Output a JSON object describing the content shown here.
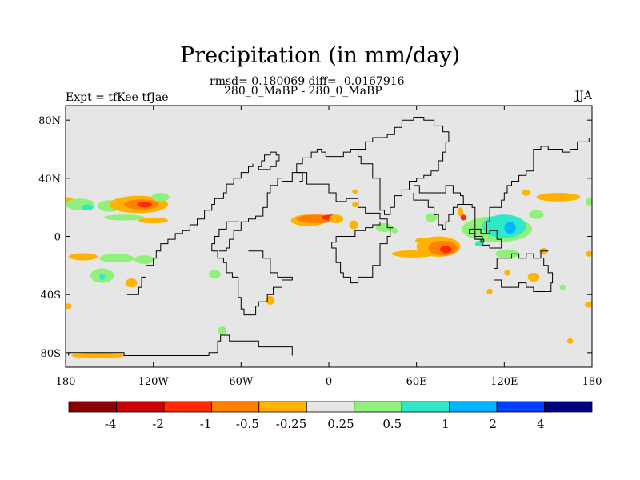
{
  "title": "Precipitation (in mm/day)",
  "stats": "rmsd= 0.180069 diff= -0.0167916",
  "subtitle": "280_0_MaBP - 280_0_MaBP",
  "left_label": "Expt = tfKee-tfJae",
  "right_label": "JJA",
  "map": {
    "background_color": "#e6e6e6",
    "lon_range": [
      -180,
      180
    ],
    "lat_range": [
      -90,
      90
    ],
    "lat_ticks": [
      {
        "value": 80,
        "label": "80N"
      },
      {
        "value": 40,
        "label": "40N"
      },
      {
        "value": 0,
        "label": "0"
      },
      {
        "value": -40,
        "label": "40S"
      },
      {
        "value": -80,
        "label": "80S"
      }
    ],
    "lon_ticks": [
      {
        "value": -180,
        "label": "180"
      },
      {
        "value": -120,
        "label": "120W"
      },
      {
        "value": -60,
        "label": "60W"
      },
      {
        "value": 0,
        "label": "0"
      },
      {
        "value": 60,
        "label": "60E"
      },
      {
        "value": 120,
        "label": "120E"
      },
      {
        "value": 180,
        "label": "180"
      }
    ]
  },
  "colorbar": {
    "colors": [
      "#8b0000",
      "#cc0000",
      "#ff2a00",
      "#ff7f00",
      "#ffb300",
      "#e6e6e6",
      "#8ff07a",
      "#2ee8c8",
      "#00b4ff",
      "#0040ff",
      "#000080"
    ],
    "labels": [
      "-4",
      "-2",
      "-1",
      "-0.5",
      "-0.25",
      "0.25",
      "0.5",
      "1",
      "2",
      "4"
    ]
  },
  "anomalies": [
    {
      "lon": -178,
      "lat": 24,
      "rx": 4,
      "ry": 3,
      "color": "#ffb300"
    },
    {
      "lon": -170,
      "lat": 22,
      "rx": 10,
      "ry": 4,
      "color": "#8ff07a"
    },
    {
      "lon": -165,
      "lat": 20,
      "rx": 4,
      "ry": 2,
      "color": "#2ee8c8"
    },
    {
      "lon": -150,
      "lat": 21,
      "rx": 8,
      "ry": 4,
      "color": "#8ff07a"
    },
    {
      "lon": -130,
      "lat": 22,
      "rx": 20,
      "ry": 6,
      "color": "#ffb300"
    },
    {
      "lon": -128,
      "lat": 22,
      "rx": 12,
      "ry": 3.5,
      "color": "#ff7f00"
    },
    {
      "lon": -126,
      "lat": 22,
      "rx": 5,
      "ry": 2,
      "color": "#ff2a00"
    },
    {
      "lon": -115,
      "lat": 27,
      "rx": 6,
      "ry": 3,
      "color": "#8ff07a"
    },
    {
      "lon": -140,
      "lat": 13,
      "rx": 14,
      "ry": 2,
      "color": "#8ff07a"
    },
    {
      "lon": -120,
      "lat": 11,
      "rx": 10,
      "ry": 2,
      "color": "#ffb300"
    },
    {
      "lon": -168,
      "lat": -14,
      "rx": 10,
      "ry": 2.5,
      "color": "#ffb300"
    },
    {
      "lon": -145,
      "lat": -15,
      "rx": 12,
      "ry": 3,
      "color": "#8ff07a"
    },
    {
      "lon": -126,
      "lat": -16,
      "rx": 7,
      "ry": 3,
      "color": "#8ff07a"
    },
    {
      "lon": -155,
      "lat": -27,
      "rx": 8,
      "ry": 5,
      "color": "#8ff07a"
    },
    {
      "lon": -155,
      "lat": -28,
      "rx": 2,
      "ry": 2,
      "color": "#2ee8c8"
    },
    {
      "lon": -135,
      "lat": -32,
      "rx": 4,
      "ry": 3,
      "color": "#ffb300"
    },
    {
      "lon": -78,
      "lat": -26,
      "rx": 4,
      "ry": 3,
      "color": "#8ff07a"
    },
    {
      "lon": -73,
      "lat": -65,
      "rx": 3,
      "ry": 3,
      "color": "#8ff07a"
    },
    {
      "lon": -178,
      "lat": -48,
      "rx": 2,
      "ry": 2,
      "color": "#ffb300"
    },
    {
      "lon": -40,
      "lat": -44,
      "rx": 3,
      "ry": 3,
      "color": "#ffb300"
    },
    {
      "lon": -14,
      "lat": 11,
      "rx": 12,
      "ry": 4,
      "color": "#ffb300"
    },
    {
      "lon": -8,
      "lat": 12,
      "rx": 14,
      "ry": 3,
      "color": "#ff7f00"
    },
    {
      "lon": 2,
      "lat": 13,
      "rx": 7,
      "ry": 2,
      "color": "#ff2a00"
    },
    {
      "lon": 5,
      "lat": 12,
      "rx": 5,
      "ry": 3,
      "color": "#ffb300"
    },
    {
      "lon": 17,
      "lat": 8,
      "rx": 3,
      "ry": 3,
      "color": "#ffb300"
    },
    {
      "lon": 18,
      "lat": 22,
      "rx": 2,
      "ry": 2,
      "color": "#ffb300"
    },
    {
      "lon": 38,
      "lat": 6,
      "rx": 6,
      "ry": 3,
      "color": "#8ff07a"
    },
    {
      "lon": 45,
      "lat": 4,
      "rx": 2,
      "ry": 2,
      "color": "#8ff07a"
    },
    {
      "lon": 18,
      "lat": 31,
      "rx": 2,
      "ry": 1.5,
      "color": "#ffb300"
    },
    {
      "lon": 58,
      "lat": -12,
      "rx": 15,
      "ry": 2.5,
      "color": "#ffb300"
    },
    {
      "lon": 75,
      "lat": -7,
      "rx": 15,
      "ry": 7,
      "color": "#ffb300"
    },
    {
      "lon": 78,
      "lat": -8,
      "rx": 10,
      "ry": 5,
      "color": "#ff7f00"
    },
    {
      "lon": 80,
      "lat": -9,
      "rx": 4,
      "ry": 2.5,
      "color": "#ff2a00"
    },
    {
      "lon": 64,
      "lat": -3,
      "rx": 5,
      "ry": 2,
      "color": "#ffb300"
    },
    {
      "lon": 70,
      "lat": 13,
      "rx": 4,
      "ry": 3,
      "color": "#8ff07a"
    },
    {
      "lon": 90,
      "lat": 17,
      "rx": 2,
      "ry": 3,
      "color": "#ffb300"
    },
    {
      "lon": 92,
      "lat": 13,
      "rx": 2,
      "ry": 2,
      "color": "#ff2a00"
    },
    {
      "lon": 115,
      "lat": 5,
      "rx": 24,
      "ry": 9,
      "color": "#8ff07a"
    },
    {
      "lon": 120,
      "lat": 7,
      "rx": 15,
      "ry": 8,
      "color": "#2ee8c8"
    },
    {
      "lon": 124,
      "lat": 6,
      "rx": 4,
      "ry": 4,
      "color": "#00b4ff"
    },
    {
      "lon": 103,
      "lat": -5,
      "rx": 3,
      "ry": 2,
      "color": "#2ee8c8"
    },
    {
      "lon": 122,
      "lat": -12,
      "rx": 8,
      "ry": 3,
      "color": "#8ff07a"
    },
    {
      "lon": 142,
      "lat": 15,
      "rx": 5,
      "ry": 3,
      "color": "#8ff07a"
    },
    {
      "lon": 157,
      "lat": 27,
      "rx": 15,
      "ry": 3,
      "color": "#ffb300"
    },
    {
      "lon": 135,
      "lat": 30,
      "rx": 3,
      "ry": 2,
      "color": "#ffb300"
    },
    {
      "lon": 140,
      "lat": -28,
      "rx": 4,
      "ry": 3,
      "color": "#ffb300"
    },
    {
      "lon": 147,
      "lat": -10,
      "rx": 3,
      "ry": 2,
      "color": "#ffb300"
    },
    {
      "lon": 122,
      "lat": -25,
      "rx": 2,
      "ry": 2,
      "color": "#ffb300"
    },
    {
      "lon": 110,
      "lat": -38,
      "rx": 2,
      "ry": 2,
      "color": "#ffb300"
    },
    {
      "lon": 160,
      "lat": -35,
      "rx": 2,
      "ry": 2,
      "color": "#8ff07a"
    },
    {
      "lon": 178,
      "lat": 24,
      "rx": 2,
      "ry": 3,
      "color": "#8ff07a"
    },
    {
      "lon": 178,
      "lat": -47,
      "rx": 3,
      "ry": 2,
      "color": "#ffb300"
    },
    {
      "lon": 178,
      "lat": -12,
      "rx": 2,
      "ry": 2,
      "color": "#ffb300"
    },
    {
      "lon": 165,
      "lat": -72,
      "rx": 2,
      "ry": 2,
      "color": "#ffb300"
    },
    {
      "lon": -158,
      "lat": -82,
      "rx": 18,
      "ry": 2,
      "color": "#ffb300"
    }
  ],
  "land_outlines": [
    [
      [
        -25,
        -82
      ],
      [
        -25,
        -76
      ],
      [
        -40,
        -76
      ],
      [
        -48,
        -72
      ],
      [
        -62,
        -72
      ],
      [
        -68,
        -68
      ],
      [
        -74,
        -72
      ],
      [
        -76,
        -80
      ],
      [
        -82,
        -82
      ],
      [
        -100,
        -82
      ],
      [
        -110,
        -82
      ],
      [
        -140,
        -82
      ],
      [
        -140,
        -80
      ],
      [
        -178,
        -80
      ],
      [
        -178,
        -82
      ]
    ],
    [
      [
        -75,
        -10
      ],
      [
        -70,
        -8
      ],
      [
        -68,
        -2
      ],
      [
        -65,
        4
      ],
      [
        -60,
        10
      ],
      [
        -55,
        12
      ],
      [
        -50,
        14
      ],
      [
        -45,
        20
      ],
      [
        -42,
        30
      ],
      [
        -40,
        35
      ],
      [
        -35,
        40
      ],
      [
        -32,
        38
      ],
      [
        -25,
        44
      ],
      [
        -15,
        44
      ],
      [
        -15,
        36
      ],
      [
        -5,
        36
      ],
      [
        0,
        30
      ],
      [
        5,
        24
      ],
      [
        12,
        26
      ],
      [
        20,
        20
      ],
      [
        25,
        20
      ],
      [
        25,
        16
      ],
      [
        35,
        12
      ],
      [
        40,
        6
      ],
      [
        44,
        6
      ],
      [
        42,
        0
      ],
      [
        40,
        -5
      ],
      [
        35,
        -20
      ],
      [
        30,
        -28
      ],
      [
        20,
        -32
      ],
      [
        15,
        -32
      ],
      [
        15,
        -28
      ],
      [
        10,
        -25
      ],
      [
        8,
        -18
      ],
      [
        5,
        -8
      ],
      [
        2,
        -4
      ],
      [
        5,
        0
      ],
      [
        10,
        0
      ],
      [
        18,
        4
      ],
      [
        25,
        6
      ],
      [
        30,
        8
      ],
      [
        35,
        10
      ]
    ],
    [
      [
        -55,
        -10
      ],
      [
        -45,
        -15
      ],
      [
        -40,
        -25
      ],
      [
        -35,
        -28
      ],
      [
        -30,
        -28
      ],
      [
        -25,
        -30
      ],
      [
        -32,
        -35
      ],
      [
        -38,
        -40
      ],
      [
        -42,
        -45
      ],
      [
        -48,
        -48
      ],
      [
        -50,
        -54
      ],
      [
        -55,
        -54
      ],
      [
        -58,
        -50
      ],
      [
        -60,
        -42
      ],
      [
        -62,
        -38
      ],
      [
        -62,
        -28
      ],
      [
        -66,
        -25
      ],
      [
        -70,
        -18
      ],
      [
        -72,
        -15
      ],
      [
        -76,
        -10
      ],
      [
        -80,
        -5
      ],
      [
        -78,
        0
      ],
      [
        -75,
        5
      ],
      [
        -70,
        10
      ],
      [
        -62,
        11
      ]
    ],
    [
      [
        35,
        30
      ],
      [
        35,
        40
      ],
      [
        30,
        42
      ],
      [
        30,
        50
      ],
      [
        22,
        55
      ],
      [
        20,
        60
      ],
      [
        25,
        65
      ],
      [
        30,
        68
      ],
      [
        40,
        70
      ],
      [
        45,
        75
      ],
      [
        50,
        80
      ],
      [
        58,
        82
      ],
      [
        65,
        80
      ],
      [
        72,
        76
      ],
      [
        78,
        72
      ],
      [
        82,
        65
      ],
      [
        80,
        58
      ],
      [
        78,
        52
      ],
      [
        75,
        45
      ],
      [
        70,
        42
      ],
      [
        65,
        40
      ],
      [
        60,
        38
      ],
      [
        55,
        32
      ],
      [
        50,
        28
      ],
      [
        45,
        20
      ],
      [
        42,
        15
      ],
      [
        38,
        18
      ],
      [
        35,
        24
      ],
      [
        35,
        30
      ]
    ],
    [
      [
        58,
        35
      ],
      [
        62,
        30
      ],
      [
        70,
        30
      ],
      [
        75,
        30
      ],
      [
        80,
        35
      ],
      [
        85,
        30
      ],
      [
        90,
        28
      ],
      [
        92,
        22
      ],
      [
        88,
        20
      ],
      [
        85,
        15
      ],
      [
        82,
        10
      ],
      [
        80,
        5
      ],
      [
        78,
        8
      ],
      [
        75,
        15
      ],
      [
        72,
        20
      ],
      [
        68,
        25
      ],
      [
        62,
        25
      ],
      [
        58,
        30
      ]
    ],
    [
      [
        92,
        22
      ],
      [
        98,
        20
      ],
      [
        100,
        15
      ],
      [
        100,
        5
      ],
      [
        104,
        2
      ],
      [
        108,
        10
      ],
      [
        110,
        20
      ],
      [
        118,
        25
      ],
      [
        120,
        30
      ],
      [
        122,
        35
      ],
      [
        125,
        38
      ],
      [
        130,
        42
      ],
      [
        135,
        45
      ],
      [
        140,
        52
      ],
      [
        140,
        60
      ],
      [
        145,
        62
      ],
      [
        150,
        60
      ],
      [
        160,
        58
      ],
      [
        165,
        60
      ],
      [
        170,
        65
      ],
      [
        178,
        68
      ]
    ],
    [
      [
        150,
        -10
      ],
      [
        145,
        -15
      ],
      [
        140,
        -12
      ],
      [
        135,
        -15
      ],
      [
        130,
        -12
      ],
      [
        125,
        -15
      ],
      [
        115,
        -22
      ],
      [
        113,
        -30
      ],
      [
        118,
        -35
      ],
      [
        125,
        -35
      ],
      [
        130,
        -32
      ],
      [
        135,
        -35
      ],
      [
        140,
        -38
      ],
      [
        148,
        -38
      ],
      [
        152,
        -32
      ],
      [
        153,
        -25
      ],
      [
        150,
        -20
      ],
      [
        147,
        -15
      ]
    ],
    [
      [
        100,
        0
      ],
      [
        105,
        -6
      ],
      [
        110,
        -8
      ],
      [
        115,
        -8
      ],
      [
        118,
        -2
      ],
      [
        115,
        4
      ],
      [
        110,
        2
      ],
      [
        105,
        2
      ]
    ],
    [
      [
        96,
        5
      ],
      [
        100,
        -2
      ],
      [
        104,
        -4
      ],
      [
        106,
        -2
      ],
      [
        100,
        2
      ],
      [
        96,
        5
      ]
    ],
    [
      [
        -138,
        -40
      ],
      [
        -130,
        -35
      ],
      [
        -128,
        -28
      ],
      [
        -125,
        -20
      ],
      [
        -120,
        -15
      ],
      [
        -118,
        -10
      ],
      [
        -115,
        -5
      ],
      [
        -110,
        -2
      ],
      [
        -105,
        2
      ],
      [
        -100,
        4
      ],
      [
        -95,
        8
      ],
      [
        -90,
        12
      ],
      [
        -85,
        18
      ],
      [
        -80,
        22
      ],
      [
        -78,
        26
      ],
      [
        -72,
        30
      ],
      [
        -70,
        36
      ],
      [
        -65,
        40
      ],
      [
        -60,
        44
      ],
      [
        -55,
        48
      ],
      [
        -52,
        50
      ]
    ],
    [
      [
        -20,
        38
      ],
      [
        -18,
        44
      ],
      [
        -22,
        50
      ],
      [
        -18,
        54
      ],
      [
        -12,
        58
      ],
      [
        -8,
        60
      ],
      [
        -5,
        58
      ],
      [
        -2,
        55
      ],
      [
        5,
        55
      ],
      [
        10,
        58
      ],
      [
        15,
        60
      ],
      [
        22,
        60
      ]
    ],
    [
      [
        -48,
        48
      ],
      [
        -46,
        52
      ],
      [
        -44,
        56
      ],
      [
        -40,
        58
      ],
      [
        -36,
        56
      ],
      [
        -34,
        52
      ],
      [
        -36,
        48
      ],
      [
        -40,
        46
      ],
      [
        -44,
        46
      ],
      [
        -48,
        48
      ]
    ]
  ]
}
